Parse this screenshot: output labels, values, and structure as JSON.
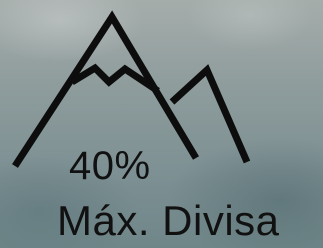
{
  "stat": {
    "value_text": "40%",
    "label": "Máx. Divisa"
  }
}
